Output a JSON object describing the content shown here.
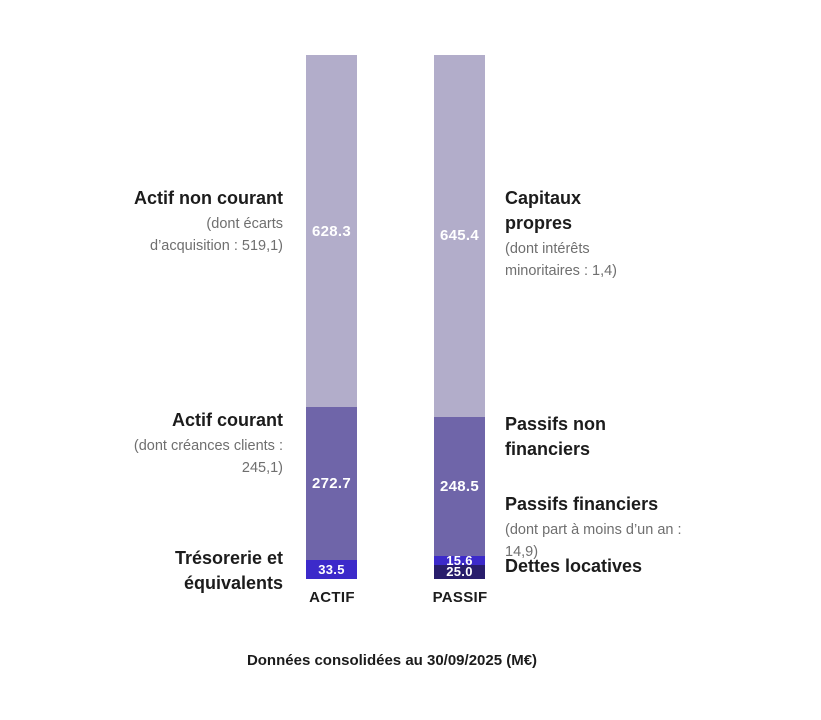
{
  "chart_data": {
    "type": "bar",
    "stacked": true,
    "title": "",
    "caption": "Données consolidées au 30/09/2025 (M€)",
    "unit": "M€",
    "categories": [
      "ACTIF",
      "PASSIF"
    ],
    "bar_total": 934.5,
    "bars": [
      {
        "label": "ACTIF",
        "segments": [
          {
            "name": "Actif non courant",
            "value": 628.3,
            "color": "light_purple"
          },
          {
            "name": "Actif courant",
            "value": 272.7,
            "color": "medium_purple"
          },
          {
            "name": "Trésorerie et équivalents",
            "value": 33.5,
            "color": "bright_violet"
          }
        ]
      },
      {
        "label": "PASSIF",
        "segments": [
          {
            "name": "Capitaux propres",
            "value": 645.4,
            "color": "light_purple"
          },
          {
            "name": "Passifs non financiers",
            "value": 248.5,
            "color": "medium_purple"
          },
          {
            "name": "Passifs financiers",
            "value": 15.6,
            "color": "bright_violet"
          },
          {
            "name": "Dettes locatives",
            "value": 25.0,
            "color": "dark_navy"
          }
        ]
      }
    ],
    "colors": {
      "light_purple": "#b2adca",
      "medium_purple": "#6f65a9",
      "bright_violet": "#3c2aca",
      "dark_navy": "#281d6c"
    },
    "legend_position": "none",
    "grid": false
  },
  "annotations": {
    "left": [
      {
        "title": "Actif non courant",
        "subtitle": "(dont écarts\nd’acquisition : 519,1)"
      },
      {
        "title": "Actif courant",
        "subtitle": "(dont créances clients :\n245,1)"
      },
      {
        "title": "Trésorerie et\néquivalents",
        "subtitle": ""
      }
    ],
    "right": [
      {
        "title": "Capitaux\npropres",
        "subtitle": "(dont intérêts\nminoritaires : 1,4)"
      },
      {
        "title": "Passifs non\nfinanciers",
        "subtitle": ""
      },
      {
        "title": "Passifs financiers",
        "subtitle": "(dont part à moins d’un an :\n14,9)"
      },
      {
        "title": "Dettes locatives",
        "subtitle": ""
      }
    ]
  },
  "axis": {
    "left_label": "ACTIF",
    "right_label": "PASSIF"
  }
}
